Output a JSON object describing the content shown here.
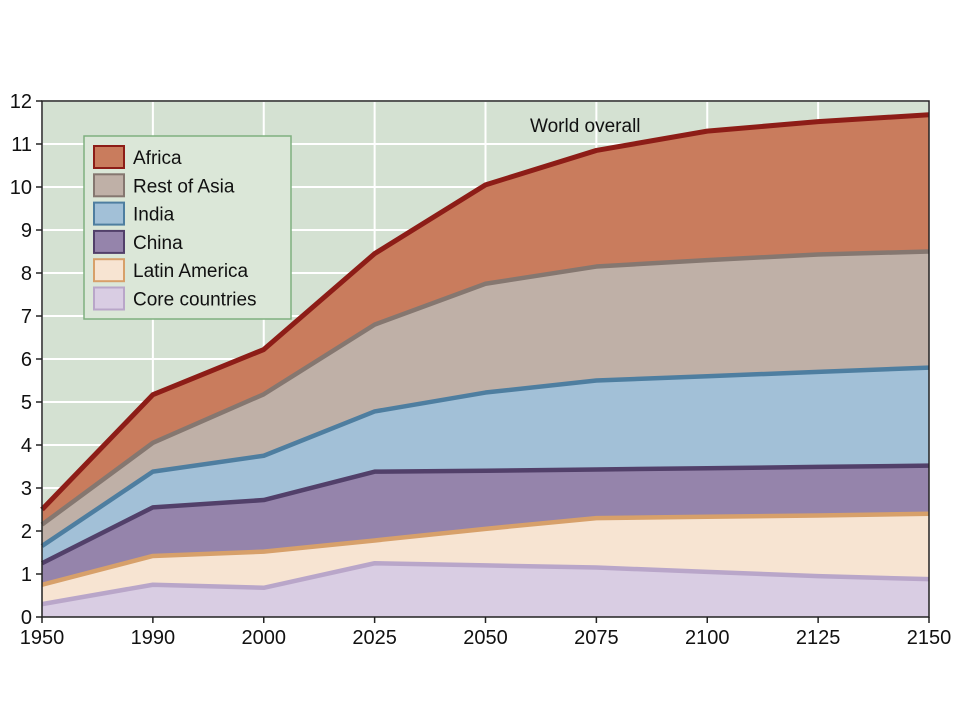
{
  "chart_data": {
    "type": "area",
    "stacked": true,
    "x": [
      1950,
      1990,
      2000,
      2025,
      2050,
      2075,
      2100,
      2125,
      2150
    ],
    "x_tick_labels": [
      "1950",
      "1990",
      "2000",
      "2025",
      "2050",
      "2075",
      "2100",
      "2125",
      "2150"
    ],
    "x_spacing": "categorical-even",
    "ylim": [
      0,
      12
    ],
    "y_ticks": [
      0,
      1,
      2,
      3,
      4,
      5,
      6,
      7,
      8,
      9,
      10,
      11,
      12
    ],
    "grid": true,
    "legend_position": "top-left",
    "annotation": "World overall",
    "series": [
      {
        "name": "Core countries",
        "fill": "#d9cde3",
        "line": "#b9a6c9",
        "cumulative": [
          0.3,
          0.75,
          0.68,
          1.25,
          1.2,
          1.15,
          1.05,
          0.95,
          0.88
        ]
      },
      {
        "name": "Latin America",
        "fill": "#f7e4d2",
        "line": "#d7a06a",
        "cumulative": [
          0.75,
          1.42,
          1.52,
          1.78,
          2.05,
          2.3,
          2.33,
          2.36,
          2.4
        ]
      },
      {
        "name": "China",
        "fill": "#9584ab",
        "line": "#52406a",
        "cumulative": [
          1.25,
          2.55,
          2.72,
          3.38,
          3.4,
          3.43,
          3.46,
          3.49,
          3.52
        ]
      },
      {
        "name": "India",
        "fill": "#a2c0d7",
        "line": "#4e7ea0",
        "cumulative": [
          1.65,
          3.38,
          3.75,
          4.78,
          5.22,
          5.5,
          5.6,
          5.7,
          5.8
        ]
      },
      {
        "name": "Rest of Asia",
        "fill": "#bfb0a7",
        "line": "#857770",
        "cumulative": [
          2.15,
          4.05,
          5.18,
          6.8,
          7.75,
          8.15,
          8.3,
          8.43,
          8.5
        ]
      },
      {
        "name": "Africa",
        "fill": "#c97c5d",
        "line": "#8d1d17",
        "cumulative": [
          2.5,
          5.17,
          6.22,
          8.45,
          10.05,
          10.85,
          11.3,
          11.52,
          11.68
        ]
      }
    ],
    "legend_order": [
      "Africa",
      "Rest of Asia",
      "India",
      "China",
      "Latin America",
      "Core countries"
    ]
  },
  "colors": {
    "plot_background": "#d4e1d2",
    "grid": "#ffffff",
    "legend_background": "#dbe7d8",
    "legend_border": "#7fb07f"
  }
}
